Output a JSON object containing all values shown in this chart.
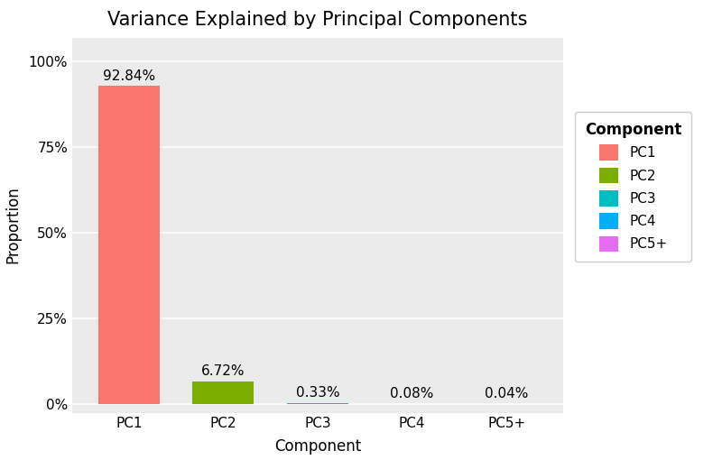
{
  "title": "Variance Explained by Principal Components",
  "categories": [
    "PC1",
    "PC2",
    "PC3",
    "PC4",
    "PC5+"
  ],
  "values": [
    0.9284,
    0.0672,
    0.0033,
    0.0008,
    0.0004
  ],
  "labels": [
    "92.84%",
    "6.72%",
    "0.33%",
    "0.08%",
    "0.04%"
  ],
  "bar_colors": [
    "#F8766D",
    "#7CAE00",
    "#00BFC4",
    "#00B0F6",
    "#E76BF3"
  ],
  "xlabel": "Component",
  "ylabel": "Proportion",
  "title_fontsize": 15,
  "axis_label_fontsize": 12,
  "tick_fontsize": 11,
  "legend_title": "Component",
  "plot_bg_color": "#EBEBEB",
  "outer_bg_color": "#FFFFFF",
  "grid_color": "#FFFFFF",
  "yticks": [
    0.0,
    0.25,
    0.5,
    0.75,
    1.0
  ],
  "ytick_labels": [
    "0%",
    "25%",
    "50%",
    "75%",
    "100%"
  ],
  "ylim": [
    -0.025,
    1.07
  ]
}
